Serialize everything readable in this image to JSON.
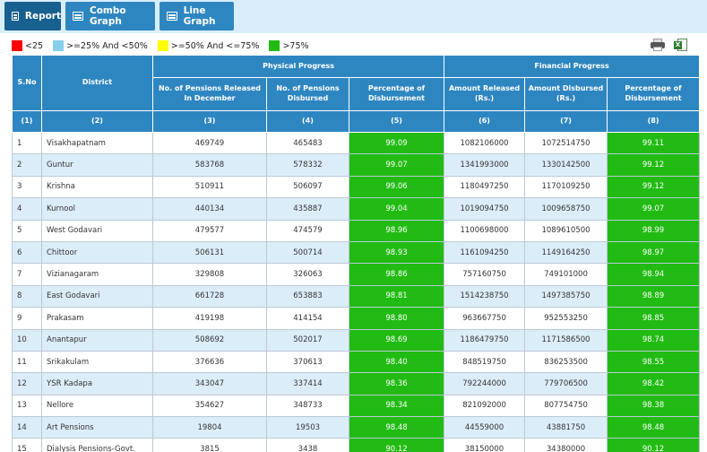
{
  "tabs": [
    {
      "label": "Report",
      "active": true
    },
    {
      "label": "Combo Graph",
      "active": false
    },
    {
      "label": "Line Graph",
      "active": false
    }
  ],
  "legend": [
    {
      "label": "<25",
      "color": "#ff0000"
    },
    {
      "label": ">=25% And <50%",
      "color": "#87ceeb"
    },
    {
      "label": ">=50% And <=75%",
      "color": "#ffff00"
    },
    {
      "label": ">75%",
      "color": "#22bb14"
    }
  ],
  "tools": {
    "print_icon": "printer-icon",
    "export_icon": "excel-icon"
  },
  "table": {
    "headers": {
      "sno": "S.No",
      "district": "District",
      "physical_group": "Physical Progress",
      "financial_group": "Financial Progress",
      "released": "No. of Pensions Released In December",
      "disbursed": "No. of Pensions Disbursed",
      "phys_pct": "Percentage of Disbursement",
      "amount_released": "Amount Released (Rs.)",
      "amount_disbursed": "Amount Disbursed (Rs.)",
      "fin_pct": "Percentage of Disbursement"
    },
    "col_numbers": [
      "(1)",
      "(2)",
      "(3)",
      "(4)",
      "(5)",
      "(6)",
      "(7)",
      "(8)"
    ],
    "rows": [
      [
        "1",
        "Visakhapatnam",
        "469749",
        "465483",
        "99.09",
        "1082106000",
        "1072514750",
        "99.11"
      ],
      [
        "2",
        "Guntur",
        "583768",
        "578332",
        "99.07",
        "1341993000",
        "1330142500",
        "99.12"
      ],
      [
        "3",
        "Krishna",
        "510911",
        "506097",
        "99.06",
        "1180497250",
        "1170109250",
        "99.12"
      ],
      [
        "4",
        "Kurnool",
        "440134",
        "435887",
        "99.04",
        "1019094750",
        "1009658750",
        "99.07"
      ],
      [
        "5",
        "West Godavari",
        "479577",
        "474579",
        "98.96",
        "1100698000",
        "1089610500",
        "98.99"
      ],
      [
        "6",
        "Chittoor",
        "506131",
        "500714",
        "98.93",
        "1161094250",
        "1149164250",
        "98.97"
      ],
      [
        "7",
        "Vizianagaram",
        "329808",
        "326063",
        "98.86",
        "757160750",
        "749101000",
        "98.94"
      ],
      [
        "8",
        "East Godavari",
        "661728",
        "653883",
        "98.81",
        "1514238750",
        "1497385750",
        "98.89"
      ],
      [
        "9",
        "Prakasam",
        "419198",
        "414154",
        "98.80",
        "963667750",
        "952553250",
        "98.85"
      ],
      [
        "10",
        "Anantapur",
        "508692",
        "502017",
        "98.69",
        "1186479750",
        "1171586500",
        "98.74"
      ],
      [
        "11",
        "Srikakulam",
        "376636",
        "370613",
        "98.40",
        "848519750",
        "836253500",
        "98.55"
      ],
      [
        "12",
        "YSR Kadapa",
        "343047",
        "337414",
        "98.36",
        "792244000",
        "779706500",
        "98.42"
      ],
      [
        "13",
        "Nellore",
        "354627",
        "348733",
        "98.34",
        "821092000",
        "807754750",
        "98.38"
      ],
      [
        "14",
        "Art Pensions",
        "19804",
        "19503",
        "98.48",
        "44559000",
        "43881750",
        "98.48"
      ],
      [
        "15",
        "Dialysis Pensions-Govt.",
        "3815",
        "3438",
        "90.12",
        "38150000",
        "34380000",
        "90.12"
      ]
    ]
  }
}
